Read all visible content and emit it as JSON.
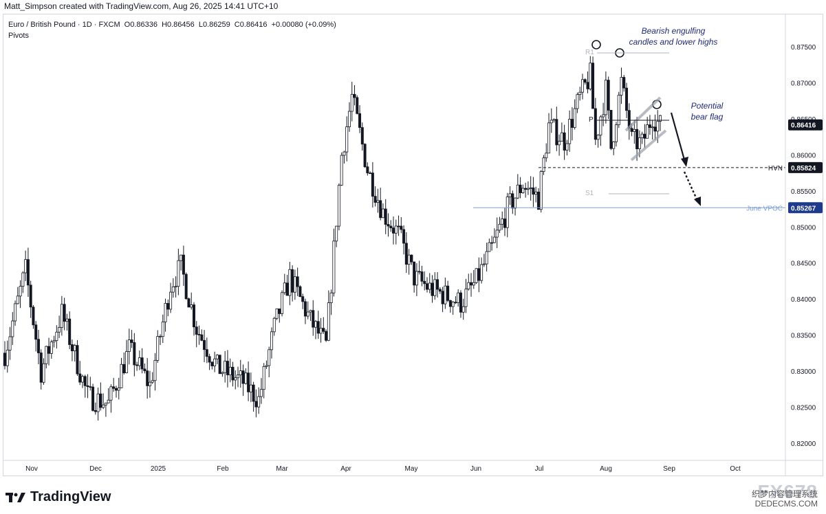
{
  "header": {
    "credit": "Matt_Simpson created with TradingView.com, Aug 26, 2025 14:41 UTC+10"
  },
  "legend": {
    "symbol": "Euro / British Pound · 1D · FXCM",
    "open": "O0.86336",
    "high": "H0.86456",
    "low": "L0.86259",
    "close": "C0.86416",
    "change": "+0.00080 (+0.09%)",
    "indicator": "Pivots"
  },
  "branding": {
    "logo_text": "TradingView",
    "watermark": "FX678",
    "watermark_sub": "织梦内容管理系统",
    "watermark_url": "DEDECMS.COM"
  },
  "annotations": {
    "engulfing_line1": "Bearish engulfing",
    "engulfing_line2": "candles and lower highs",
    "flag_line1": "Potential",
    "flag_line2": "bear flag"
  },
  "chart_data": {
    "type": "candlestick",
    "symbol": "EUR/GBP",
    "timeframe": "1D",
    "ylim": [
      0.815,
      0.8785
    ],
    "y_ticks": [
      "0.87500",
      "0.87000",
      "0.86500",
      "0.86000",
      "0.85500",
      "0.85000",
      "0.84500",
      "0.84000",
      "0.83500",
      "0.83000",
      "0.82500",
      "0.82000"
    ],
    "x_ticks": [
      "Nov",
      "Dec",
      "2025",
      "Feb",
      "Mar",
      "Apr",
      "May",
      "Jun",
      "Jul",
      "Aug",
      "Sep",
      "Oct"
    ],
    "last_price": "0.86416",
    "levels": [
      {
        "name": "HVN",
        "value": 0.85824,
        "label": "0.85824",
        "style": "dashed",
        "color": "#131722"
      },
      {
        "name": "June VPOC",
        "value": 0.85267,
        "label": "0.85267",
        "style": "solid",
        "color": "#7b9fd6"
      }
    ],
    "pivots": [
      {
        "name": "R1",
        "value": 0.8743
      },
      {
        "name": "P",
        "value": 0.86495
      },
      {
        "name": "S1",
        "value": 0.8548
      }
    ],
    "colors": {
      "up": "#ffffff",
      "down": "#131722",
      "wick": "#131722",
      "accent": "#1e2a78"
    }
  }
}
